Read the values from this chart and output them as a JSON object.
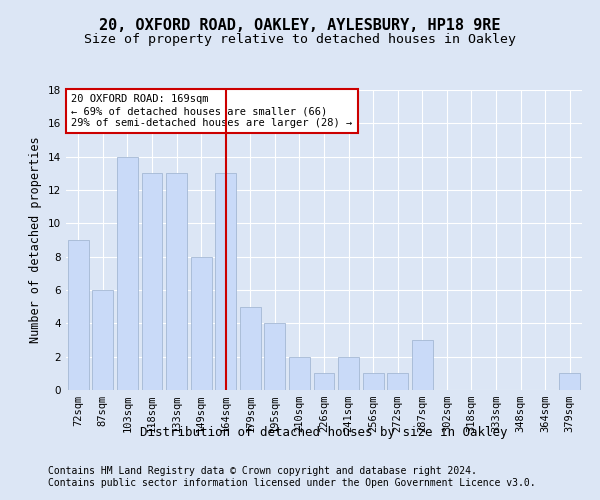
{
  "title1": "20, OXFORD ROAD, OAKLEY, AYLESBURY, HP18 9RE",
  "title2": "Size of property relative to detached houses in Oakley",
  "xlabel": "Distribution of detached houses by size in Oakley",
  "ylabel": "Number of detached properties",
  "footer1": "Contains HM Land Registry data © Crown copyright and database right 2024.",
  "footer2": "Contains public sector information licensed under the Open Government Licence v3.0.",
  "categories": [
    "72sqm",
    "87sqm",
    "103sqm",
    "118sqm",
    "133sqm",
    "149sqm",
    "164sqm",
    "179sqm",
    "195sqm",
    "210sqm",
    "226sqm",
    "241sqm",
    "256sqm",
    "272sqm",
    "287sqm",
    "302sqm",
    "318sqm",
    "333sqm",
    "348sqm",
    "364sqm",
    "379sqm"
  ],
  "values": [
    9,
    6,
    14,
    13,
    13,
    8,
    13,
    5,
    4,
    2,
    1,
    2,
    1,
    1,
    3,
    0,
    0,
    0,
    0,
    0,
    1
  ],
  "bar_color": "#c9daf8",
  "bar_edgecolor": "#a4b8d4",
  "highlight_index": 6,
  "highlight_color": "#cc0000",
  "annotation_text": "20 OXFORD ROAD: 169sqm\n← 69% of detached houses are smaller (66)\n29% of semi-detached houses are larger (28) →",
  "annotation_box_color": "#ffffff",
  "annotation_box_edgecolor": "#cc0000",
  "ylim": [
    0,
    18
  ],
  "yticks": [
    0,
    2,
    4,
    6,
    8,
    10,
    12,
    14,
    16,
    18
  ],
  "background_color": "#dce6f5",
  "plot_background": "#dce6f5",
  "grid_color": "#ffffff",
  "title1_fontsize": 11,
  "title2_fontsize": 9.5,
  "ylabel_fontsize": 8.5,
  "xlabel_fontsize": 9,
  "tick_fontsize": 7.5,
  "footer_fontsize": 7,
  "annot_fontsize": 7.5
}
